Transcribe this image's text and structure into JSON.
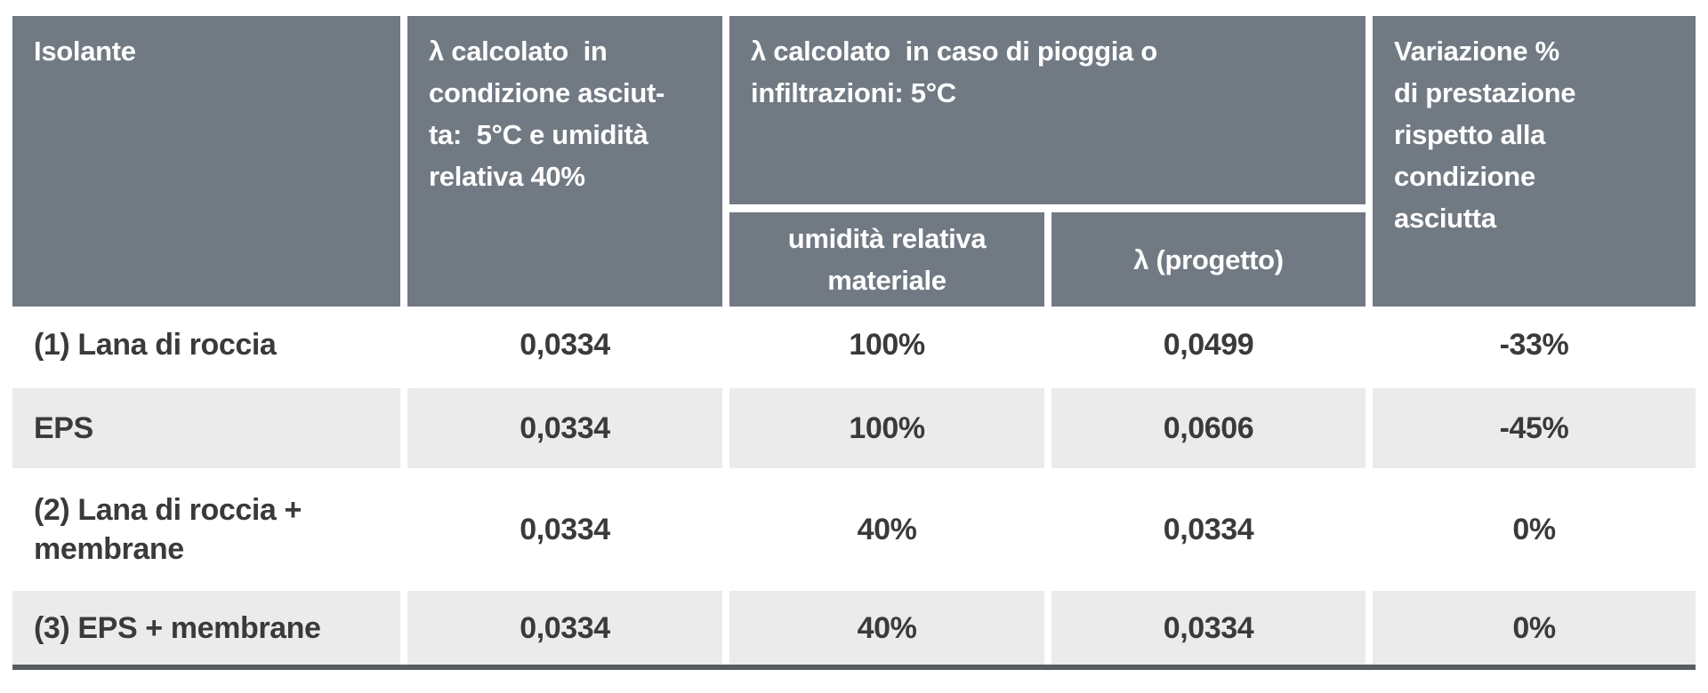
{
  "chart_data": {
    "type": "table",
    "header": {
      "isolante": "Isolante",
      "lambda_dry": "λ calcolato  in\ncondizione asciut-\nta:  5°C e umidità\nrelativa 40%",
      "lambda_wet_group": "λ calcolato  in caso di pioggia o\ninfiltrazioni: 5°C",
      "sub_humidity": "umidità relativa\nmateriale",
      "sub_lambda_project": "λ (progetto)",
      "variation": "Variazione %\ndi prestazione\nrispetto alla\ncondizione\nasciutta"
    },
    "rows": [
      {
        "material": "(1) Lana di roccia",
        "lambda_dry": "0,0334",
        "humidity": "100%",
        "lambda_project": "0,0499",
        "variation": "-33%"
      },
      {
        "material": "EPS",
        "lambda_dry": "0,0334",
        "humidity": "100%",
        "lambda_project": "0,0606",
        "variation": "-45%"
      },
      {
        "material": "(2) Lana di roccia +\nmembrane",
        "lambda_dry": "0,0334",
        "humidity": "40%",
        "lambda_project": "0,0334",
        "variation": "0%"
      },
      {
        "material": "(3) EPS + membrane",
        "lambda_dry": "0,0334",
        "humidity": "40%",
        "lambda_project": "0,0334",
        "variation": "0%"
      }
    ],
    "layout": {
      "grid": "off",
      "legend": "none",
      "alternating_row_shading": true
    },
    "colors": {
      "header_bg": "#717a83",
      "header_text": "#ffffff",
      "row_bg": "#ffffff",
      "row_alt_bg": "#ebebeb",
      "body_text": "#3a3a3a",
      "bottom_rule": "#565c62"
    }
  }
}
